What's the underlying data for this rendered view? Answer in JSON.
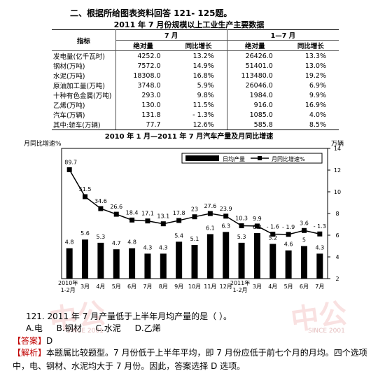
{
  "section_title": "二、根据所给图表资料回答 121- 125题。",
  "table": {
    "title": "2011 年 7 月份规模以上工业生产主要数据",
    "col_indicator": "指标",
    "group_july": "7 月",
    "group_jan_jul": "1—7 月",
    "sub_abs": "绝对量",
    "sub_growth": "同比增长",
    "rows": [
      {
        "name": "发电量(亿千瓦时)",
        "jul": "4252.0",
        "jul_g": "13.2%",
        "cum": "26426.0",
        "cum_g": "13.3%"
      },
      {
        "name": "钢材(万吨)",
        "jul": "7572.0",
        "jul_g": "14.9%",
        "cum": "51401.0",
        "cum_g": "13.0%"
      },
      {
        "name": "水泥(万吨)",
        "jul": "18308.0",
        "jul_g": "16.8%",
        "cum": "113480.0",
        "cum_g": "19.2%"
      },
      {
        "name": "原油加工量(万吨)",
        "jul": "3748.0",
        "jul_g": "5.9%",
        "cum": "26046.0",
        "cum_g": "6.9%"
      },
      {
        "name": "十种有色金属(万吨)",
        "jul": "293.0",
        "jul_g": "9.8%",
        "cum": "1984.0",
        "cum_g": "9.9%"
      },
      {
        "name": "乙烯(万吨)",
        "jul": "130.0",
        "jul_g": "11.5%",
        "cum": "916.0",
        "cum_g": "16.9%"
      },
      {
        "name": "汽车(万辆)",
        "jul": "131.8",
        "jul_g": "- 1.3%",
        "cum": "1085.0",
        "cum_g": "4.0%"
      },
      {
        "name": "其中:轿车(万辆)",
        "jul": "77.7",
        "jul_g": "12.6%",
        "cum": "585.8",
        "cum_g": "8.5%"
      }
    ]
  },
  "chart_data": {
    "type": "bar",
    "title": "2010 年 1 月—2011 年 7 月汽车产量及月同比增速",
    "left_axis_label": "月同比增速%",
    "right_axis_label": "万辆",
    "legend": {
      "bar": "日均产量",
      "line": "月同比增速%"
    },
    "categories": [
      "2010年\n1-2月",
      "3月",
      "4月",
      "5月",
      "6月",
      "7月",
      "8月",
      "9月",
      "10月",
      "11月",
      "12月",
      "2011年\n1-2月",
      "3月",
      "4月",
      "5月",
      "6月",
      "7月"
    ],
    "series": [
      {
        "name": "日均产量",
        "axis": "right",
        "values": [
          4.8,
          5.6,
          5.3,
          4.7,
          4.8,
          4.3,
          4.3,
          5.4,
          5.1,
          6.1,
          6.3,
          5.3,
          6.2,
          5.2,
          4.6,
          5,
          4.3
        ]
      },
      {
        "name": "月同比增速%",
        "axis": "left",
        "values": [
          89.7,
          51.5,
          34.6,
          26.6,
          18.4,
          17.1,
          13.1,
          17.8,
          23,
          27.6,
          23.9,
          10.3,
          9.9,
          -1.6,
          -1.9,
          3.6,
          -1.3
        ]
      }
    ],
    "line_labels": [
      "89.7",
      "51.5",
      "34.6",
      "26.6",
      "18.4",
      "17.1",
      "13.1",
      "17.8",
      "23",
      "27.6",
      "23.9",
      "10.3",
      "9.9",
      "- 1.6",
      "- 1.9",
      "3.6",
      "- 1.3"
    ],
    "bar_labels": [
      "4.8",
      "5.6",
      "5.3",
      "4.7",
      "4.8",
      "4.3",
      "4.3",
      "5.4",
      "5.1",
      "6.1",
      "6.3",
      "5.3",
      "6.2",
      "5.2",
      "4.6",
      "5",
      "4.3"
    ],
    "right_ticks": [
      "2",
      "4",
      "6",
      "8",
      "10",
      "12",
      "14"
    ],
    "right_tick_values": [
      2,
      4,
      6,
      8,
      10,
      12,
      14
    ],
    "ylim_right": [
      2,
      14
    ],
    "line_y_range": [
      -10,
      100
    ]
  },
  "question": {
    "text": "121. 2011 年 7 月产量低于上半年月均产量的是（    ）。",
    "options": [
      "A.电",
      "B.钢材",
      "C.水泥",
      "D.乙烯"
    ]
  },
  "answer": {
    "tag": "【答案】",
    "value": "D"
  },
  "explanation": {
    "tag": "【解析】",
    "text": "本题属比较题型。7 月份低于上半年平均，即 7 月份应低于前七个月的月均。四个选项中，电、钢材、水泥均大于 7 月份。因此，答案选择 D 选项。"
  },
  "watermark": {
    "text": "中公",
    "sub": "SINCE 2001"
  }
}
